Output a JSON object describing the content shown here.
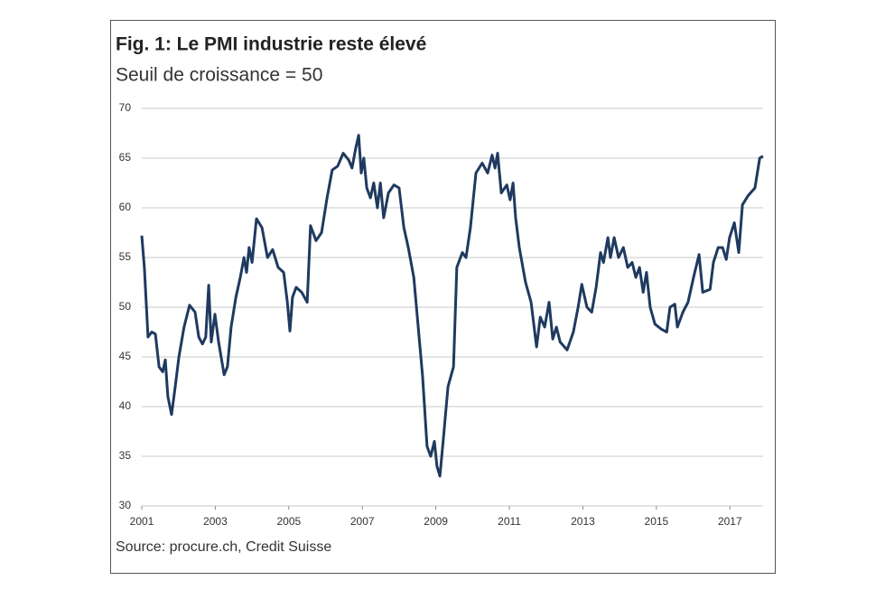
{
  "chart_data": {
    "type": "line",
    "title": "Fig. 1: Le PMI industrie reste élevé",
    "subtitle": "Seuil de croissance = 50",
    "source": "Source: procure.ch, Credit Suisse",
    "xlim": [
      2001,
      2018
    ],
    "xticks": [
      2001,
      2003,
      2005,
      2007,
      2009,
      2011,
      2013,
      2015,
      2017
    ],
    "ylim": [
      30,
      70
    ],
    "yticks": [
      30,
      35,
      40,
      45,
      50,
      55,
      60,
      65,
      70
    ],
    "grid": true,
    "series": [
      {
        "name": "PMI",
        "color": "#1f3a5f",
        "x": [
          2001.0,
          2001.07,
          2001.17,
          2001.27,
          2001.37,
          2001.47,
          2001.57,
          2001.64,
          2001.71,
          2001.81,
          2001.91,
          2002.01,
          2002.15,
          2002.3,
          2002.45,
          2002.55,
          2002.65,
          2002.74,
          2002.82,
          2002.89,
          2002.99,
          2003.09,
          2003.24,
          2003.33,
          2003.43,
          2003.56,
          2003.68,
          2003.78,
          2003.85,
          2003.92,
          2004.0,
          2004.12,
          2004.27,
          2004.42,
          2004.56,
          2004.71,
          2004.86,
          2004.96,
          2005.03,
          2005.1,
          2005.2,
          2005.35,
          2005.5,
          2005.59,
          2005.74,
          2005.89,
          2006.04,
          2006.18,
          2006.33,
          2006.48,
          2006.63,
          2006.72,
          2006.82,
          2006.9,
          2006.97,
          2007.04,
          2007.12,
          2007.22,
          2007.31,
          2007.41,
          2007.49,
          2007.58,
          2007.71,
          2007.86,
          2008.0,
          2008.13,
          2008.25,
          2008.4,
          2008.52,
          2008.64,
          2008.76,
          2008.86,
          2008.96,
          2009.03,
          2009.11,
          2009.21,
          2009.33,
          2009.48,
          2009.57,
          2009.72,
          2009.82,
          2009.94,
          2010.09,
          2010.26,
          2010.41,
          2010.53,
          2010.61,
          2010.68,
          2010.78,
          2010.93,
          2011.02,
          2011.1,
          2011.17,
          2011.27,
          2011.44,
          2011.59,
          2011.74,
          2011.84,
          2011.96,
          2012.08,
          2012.18,
          2012.28,
          2012.38,
          2012.57,
          2012.74,
          2012.87,
          2012.97,
          2013.11,
          2013.24,
          2013.36,
          2013.48,
          2013.56,
          2013.68,
          2013.75,
          2013.85,
          2013.97,
          2014.1,
          2014.22,
          2014.34,
          2014.44,
          2014.54,
          2014.64,
          2014.73,
          2014.83,
          2014.96,
          2015.13,
          2015.28,
          2015.37,
          2015.5,
          2015.57,
          2015.72,
          2015.86,
          2016.01,
          2016.16,
          2016.26,
          2016.46,
          2016.55,
          2016.68,
          2016.8,
          2016.9,
          2016.99,
          2017.12,
          2017.24,
          2017.34,
          2017.49,
          2017.68,
          2017.81,
          2017.9
        ],
        "values": [
          57.2,
          54,
          47,
          47.5,
          47.3,
          44,
          43.5,
          44.7,
          41,
          39.2,
          42,
          45,
          48,
          50.2,
          49.5,
          47,
          46.3,
          47,
          52.2,
          46.5,
          49.3,
          46.5,
          43.2,
          44,
          48,
          51,
          53,
          55,
          53.5,
          56,
          54.5,
          58.9,
          58,
          55,
          55.8,
          54,
          53.5,
          50.5,
          47.6,
          51,
          52,
          51.5,
          50.5,
          58.2,
          56.7,
          57.5,
          61,
          63.8,
          64.2,
          65.5,
          64.8,
          64,
          66,
          67.3,
          63.5,
          65,
          62,
          61,
          62.5,
          60,
          62.5,
          59,
          61.5,
          62.3,
          62,
          58,
          56,
          53,
          48,
          43,
          36,
          35,
          36.5,
          34,
          33,
          37,
          42,
          44,
          54,
          55.5,
          55,
          58,
          63.5,
          64.5,
          63.5,
          65.3,
          64,
          65.5,
          61.5,
          62.3,
          60.8,
          62.5,
          59,
          56,
          52.5,
          50.5,
          46,
          49,
          48,
          50.5,
          46.8,
          48,
          46.5,
          45.7,
          47.5,
          50,
          52.3,
          50,
          49.5,
          52,
          55.5,
          54.5,
          57,
          55,
          57,
          55,
          56,
          54,
          54.5,
          53,
          54,
          51.5,
          53.5,
          50,
          48.3,
          47.8,
          47.5,
          50,
          50.3,
          48,
          49.5,
          50.5,
          53,
          55.3,
          51.5,
          51.8,
          54.5,
          56,
          56,
          54.8,
          57,
          58.5,
          55.5,
          60.3,
          61.2,
          62,
          65,
          65.2
        ]
      }
    ]
  }
}
